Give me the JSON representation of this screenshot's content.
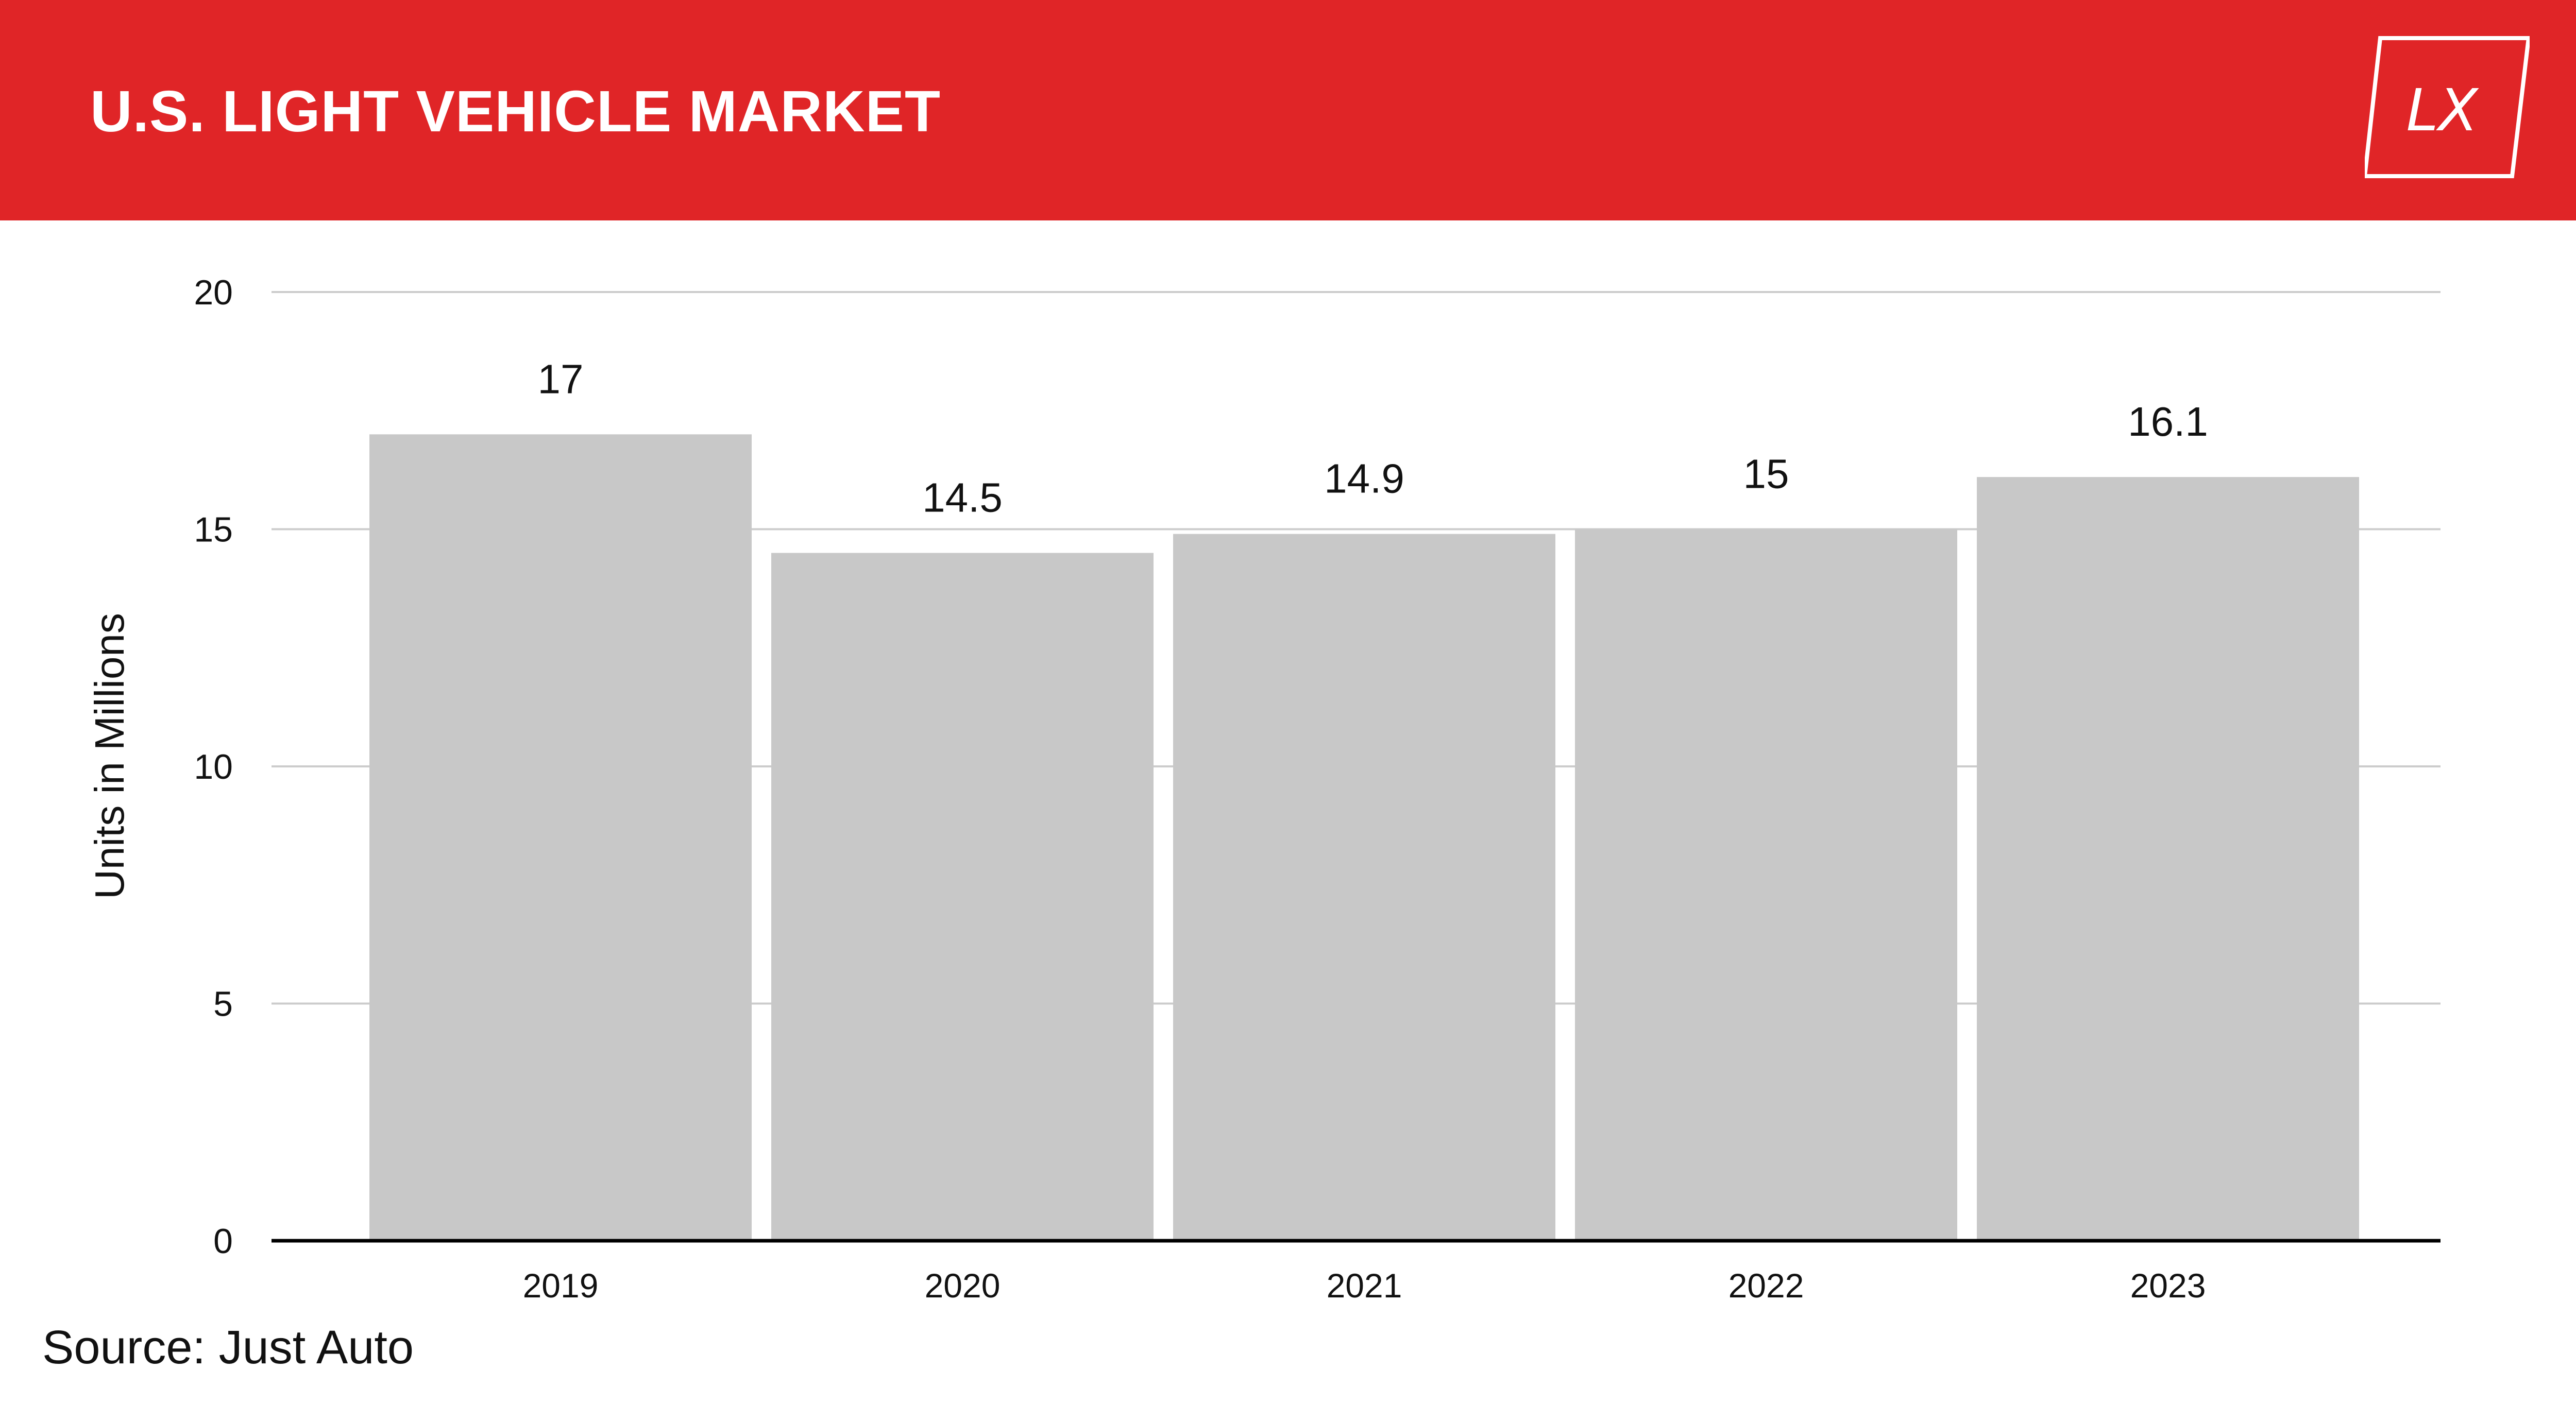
{
  "header": {
    "title": "U.S. LIGHT VEHICLE MARKET",
    "logo_text": "LX",
    "logo_icon": "lx-logo-icon"
  },
  "colors": {
    "header_bg": "#e02527",
    "bar_fill": "#c8c8c8",
    "grid": "#cccccc",
    "baseline": "#000000",
    "text": "#111111"
  },
  "chart_data": {
    "type": "bar",
    "categories": [
      "2019",
      "2020",
      "2021",
      "2022",
      "2023"
    ],
    "values": [
      17,
      14.5,
      14.9,
      15,
      16.1
    ],
    "data_labels": [
      "17",
      "14.5",
      "14.9",
      "15",
      "16.1"
    ],
    "xlabel": "",
    "ylabel": "Units in Millions",
    "ylim": [
      0,
      20
    ],
    "yticks": [
      0,
      5,
      10,
      15,
      20
    ],
    "grid": true,
    "legend": "none"
  },
  "footer": {
    "source": "Source: Just Auto"
  }
}
